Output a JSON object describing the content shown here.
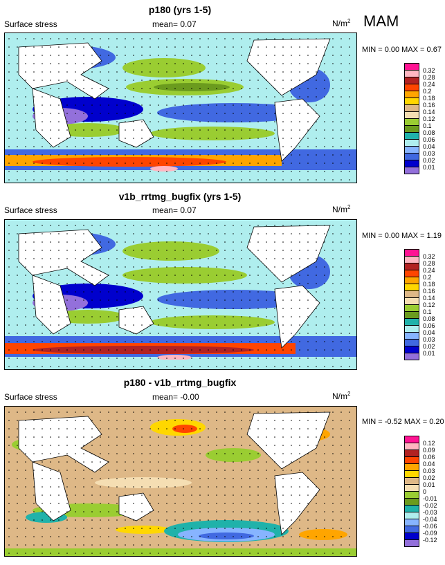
{
  "season": "MAM",
  "units": "N/m",
  "units_exp": "2",
  "panels": [
    {
      "title": "p180 (yrs 1-5)",
      "variable": "Surface stress",
      "mean": "mean=  0.07",
      "minmax": "MIN =  0.00 MAX =  0.67",
      "legend": [
        "0.32",
        "0.28",
        "0.24",
        "0.2",
        "0.18",
        "0.16",
        "0.14",
        "0.12",
        "0.1",
        "0.08",
        "0.06",
        "0.04",
        "0.03",
        "0.02",
        "0.01"
      ],
      "colors": [
        "#ff1493",
        "#ffb6c1",
        "#b22222",
        "#ff4500",
        "#ffa500",
        "#ffd700",
        "#deb887",
        "#f5deb3",
        "#9acd32",
        "#6b9b1e",
        "#20b2aa",
        "#afeeee",
        "#87b4ff",
        "#4169e1",
        "#0000cd",
        "#9370db"
      ]
    },
    {
      "title": "v1b_rrtmg_bugfix (yrs 1-5)",
      "variable": "Surface stress",
      "mean": "mean=  0.07",
      "minmax": "MIN =  0.00 MAX =  1.19",
      "legend": [
        "0.32",
        "0.28",
        "0.24",
        "0.2",
        "0.18",
        "0.16",
        "0.14",
        "0.12",
        "0.1",
        "0.08",
        "0.06",
        "0.04",
        "0.03",
        "0.02",
        "0.01"
      ],
      "colors": [
        "#ff1493",
        "#ffb6c1",
        "#b22222",
        "#ff4500",
        "#ffa500",
        "#ffd700",
        "#deb887",
        "#f5deb3",
        "#9acd32",
        "#6b9b1e",
        "#20b2aa",
        "#afeeee",
        "#87b4ff",
        "#4169e1",
        "#0000cd",
        "#9370db"
      ]
    },
    {
      "title": "p180 - v1b_rrtmg_bugfix",
      "variable": "Surface stress",
      "mean": "mean=  -0.00",
      "minmax": "MIN = -0.52 MAX =  0.20",
      "legend": [
        "0.12",
        "0.09",
        "0.06",
        "0.04",
        "0.03",
        "0.02",
        "0.01",
        "0",
        "-0.01",
        "-0.02",
        "-0.03",
        "-0.04",
        "-0.06",
        "-0.09",
        "-0.12"
      ],
      "colors": [
        "#ff1493",
        "#ffb6c1",
        "#b22222",
        "#ff4500",
        "#ffa500",
        "#ffd700",
        "#deb887",
        "#f5deb3",
        "#9acd32",
        "#6b9b1e",
        "#20b2aa",
        "#afeeee",
        "#87b4ff",
        "#4169e1",
        "#0000cd",
        "#9370db"
      ]
    }
  ]
}
